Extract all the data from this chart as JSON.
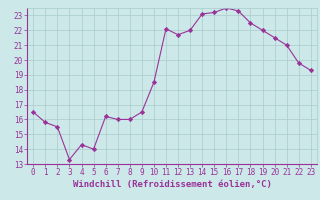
{
  "x": [
    0,
    1,
    2,
    3,
    4,
    5,
    6,
    7,
    8,
    9,
    10,
    11,
    12,
    13,
    14,
    15,
    16,
    17,
    18,
    19,
    20,
    21,
    22,
    23
  ],
  "y": [
    16.5,
    15.8,
    15.5,
    13.3,
    14.3,
    14.0,
    16.2,
    16.0,
    16.0,
    16.5,
    18.5,
    22.1,
    21.7,
    22.0,
    23.1,
    23.2,
    23.5,
    23.3,
    22.5,
    22.0,
    21.5,
    21.0,
    19.8,
    19.3
  ],
  "line_color": "#993399",
  "marker": "D",
  "marker_size": 2.2,
  "bg_color": "#cce8e8",
  "grid_color": "#aacccc",
  "xlabel": "Windchill (Refroidissement éolien,°C)",
  "xlim": [
    -0.5,
    23.5
  ],
  "ylim": [
    13,
    23.5
  ],
  "yticks": [
    13,
    14,
    15,
    16,
    17,
    18,
    19,
    20,
    21,
    22,
    23
  ],
  "xticks": [
    0,
    1,
    2,
    3,
    4,
    5,
    6,
    7,
    8,
    9,
    10,
    11,
    12,
    13,
    14,
    15,
    16,
    17,
    18,
    19,
    20,
    21,
    22,
    23
  ],
  "tick_fontsize": 5.5,
  "xlabel_fontsize": 6.5,
  "label_color": "#993399",
  "spine_color": "#993399"
}
